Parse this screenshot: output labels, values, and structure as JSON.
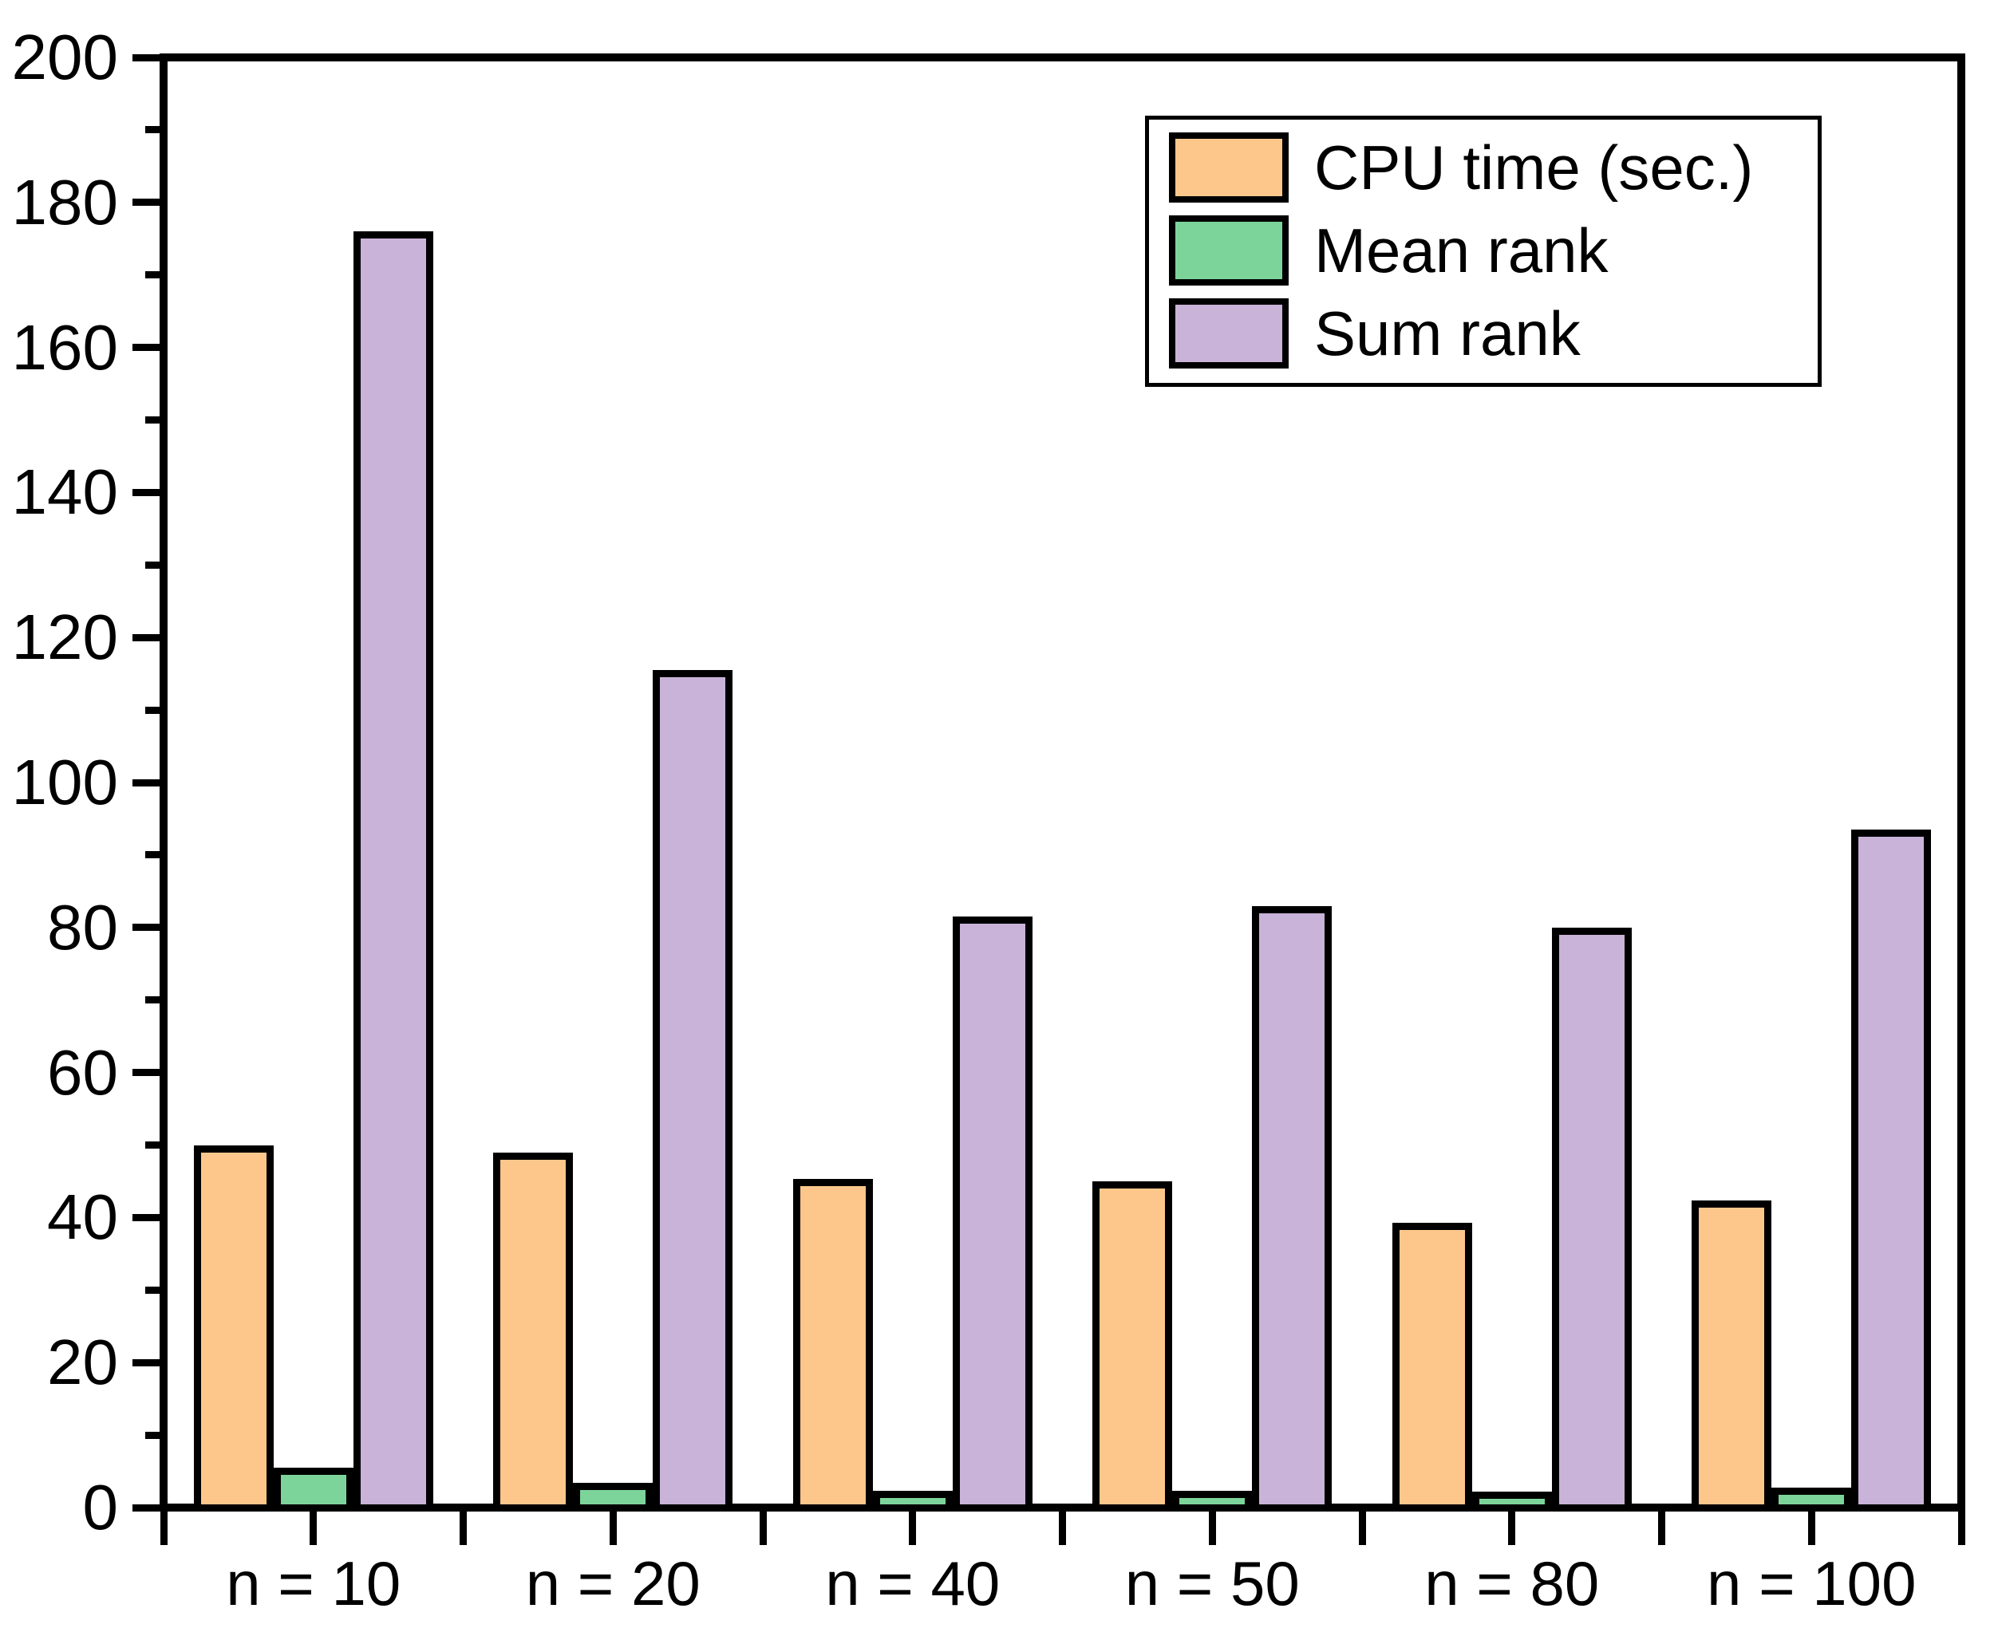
{
  "figure": {
    "background": "#FFFFFF"
  },
  "chart_data": {
    "type": "bar",
    "title": "",
    "xlabel": "",
    "ylabel": "",
    "categories": [
      "n = 10",
      "n = 20",
      "n = 40",
      "n = 50",
      "n = 80",
      "n = 100"
    ],
    "series": [
      {
        "name": "CPU time (sec.)",
        "color": "#FDC78C",
        "values": [
          50,
          49,
          45.3,
          45,
          39.3,
          42.3
        ]
      },
      {
        "name": "Mean rank",
        "color": "#7DD49A",
        "values": [
          5.5,
          3.4,
          2.3,
          2.3,
          2.2,
          2.8
        ]
      },
      {
        "name": "Sum rank",
        "color": "#C9B3D8",
        "values": [
          176,
          115.5,
          81.5,
          83,
          80,
          93.5
        ]
      }
    ],
    "ylim": [
      0,
      200
    ],
    "y_major_step": 20,
    "y_minor_step": 10,
    "y_tick_labels": [
      "0",
      "20",
      "40",
      "60",
      "80",
      "100",
      "120",
      "140",
      "160",
      "180",
      "200"
    ],
    "bar_border_color": "#000000",
    "axis_color": "#000000",
    "grid": false,
    "legend_position": "top-right"
  }
}
